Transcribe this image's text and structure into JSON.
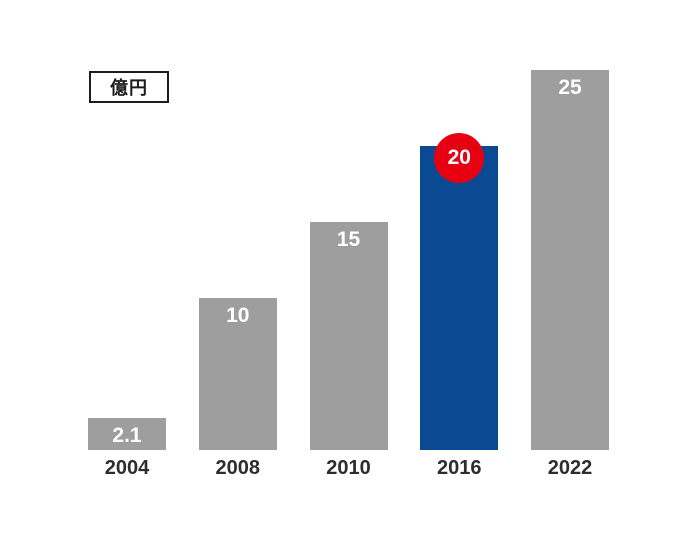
{
  "chart_data": {
    "type": "bar",
    "title": "",
    "unit_label": "億円",
    "categories": [
      "2004",
      "2008",
      "2010",
      "2016",
      "2022"
    ],
    "values": [
      2.1,
      10,
      15,
      20,
      25
    ],
    "value_labels": [
      "2.1",
      "10",
      "15",
      "20",
      "25"
    ],
    "highlight": {
      "index": 3,
      "badge_label": "20"
    },
    "ylim": [
      0,
      25
    ],
    "grid": false,
    "axis_lines": false,
    "legend": "none",
    "colors": {
      "bar_default": "#9e9e9e",
      "bar_highlight": "#0a4a93",
      "badge_background": "#e60012",
      "value_text": "#ffffff",
      "axis_text": "#2d2d2d",
      "background": "#ffffff",
      "unit_box_border": "#1c1c1c"
    }
  }
}
